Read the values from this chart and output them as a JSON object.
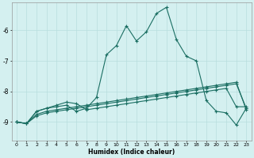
{
  "xlabel": "Humidex (Indice chaleur)",
  "bg_color": "#d4f0f0",
  "grid_color": "#b8dede",
  "line_color": "#1a6e62",
  "xlim": [
    -0.5,
    23.5
  ],
  "ylim": [
    -9.6,
    -5.1
  ],
  "yticks": [
    -9,
    -8,
    -7,
    -6
  ],
  "xticks": [
    0,
    1,
    2,
    3,
    4,
    5,
    6,
    7,
    8,
    9,
    10,
    11,
    12,
    13,
    14,
    15,
    16,
    17,
    18,
    19,
    20,
    21,
    22,
    23
  ],
  "s1_x": [
    0,
    1,
    2,
    3,
    4,
    5,
    6,
    7,
    8,
    9,
    10,
    11,
    12,
    13,
    14,
    15,
    16,
    17,
    18,
    19,
    20,
    21,
    22,
    23
  ],
  "s1_y": [
    -9.0,
    -9.05,
    -8.75,
    -8.65,
    -8.6,
    -8.55,
    -8.5,
    -8.45,
    -8.4,
    -8.35,
    -8.3,
    -8.25,
    -8.2,
    -8.15,
    -8.1,
    -8.05,
    -8.0,
    -7.95,
    -7.9,
    -7.85,
    -7.8,
    -7.75,
    -7.7,
    -8.6
  ],
  "s2_x": [
    0,
    1,
    2,
    3,
    4,
    5,
    6,
    7,
    8,
    9,
    10,
    11,
    12,
    13,
    14,
    15,
    16,
    17,
    18,
    19,
    20,
    21,
    22,
    23
  ],
  "s2_y": [
    -9.0,
    -9.05,
    -8.8,
    -8.7,
    -8.65,
    -8.6,
    -8.55,
    -8.5,
    -8.45,
    -8.4,
    -8.35,
    -8.3,
    -8.25,
    -8.2,
    -8.15,
    -8.1,
    -8.05,
    -8.0,
    -7.95,
    -7.9,
    -7.85,
    -7.8,
    -7.75,
    -8.55
  ],
  "s3_x": [
    0,
    1,
    2,
    3,
    4,
    5,
    6,
    7,
    8,
    9,
    10,
    11,
    12,
    13,
    14,
    15,
    16,
    17,
    18,
    19,
    20,
    21,
    22,
    23
  ],
  "s3_y": [
    -9.0,
    -9.05,
    -8.65,
    -8.55,
    -8.45,
    -8.35,
    -8.4,
    -8.6,
    -8.55,
    -8.5,
    -8.45,
    -8.4,
    -8.35,
    -8.3,
    -8.25,
    -8.2,
    -8.15,
    -8.1,
    -8.05,
    -8.0,
    -7.95,
    -7.9,
    -8.5,
    -8.5
  ],
  "s4_x": [
    0,
    1,
    2,
    3,
    4,
    5,
    6,
    7,
    8,
    9,
    10,
    11,
    12,
    13,
    14,
    15,
    16,
    17,
    18,
    19,
    20,
    21,
    22,
    23
  ],
  "s4_y": [
    -9.0,
    -9.05,
    -8.65,
    -8.55,
    -8.5,
    -8.45,
    -8.65,
    -8.55,
    -8.2,
    -6.8,
    -6.5,
    -5.85,
    -6.35,
    -6.05,
    -5.45,
    -5.25,
    -6.3,
    -6.85,
    -7.0,
    -8.3,
    -8.65,
    -8.7,
    -9.1,
    -8.55
  ]
}
